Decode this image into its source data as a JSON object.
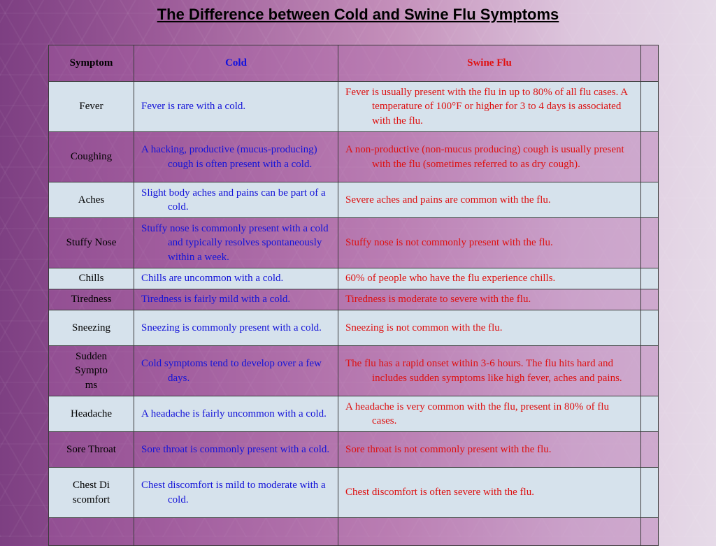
{
  "title": "The Difference between Cold and Swine Flu Symptoms",
  "table": {
    "headers": [
      "Symptom",
      "Cold",
      "Swine Flu",
      ""
    ],
    "rows": [
      {
        "symptom": "Fever",
        "cold": "Fever is rare with a cold.",
        "flu": "Fever is usually present with the flu in up to 80% of all flu cases. A temperature of 100°F or higher for 3 to 4 days is associated with the flu."
      },
      {
        "symptom": "Coughing",
        "cold": "A hacking, productive (mucus-producing) cough is often present with a cold.",
        "flu": "A non-productive (non-mucus producing) cough is usually present with the flu (sometimes referred to as dry cough)."
      },
      {
        "symptom": "Aches",
        "cold": "Slight body aches and pains can be part of a cold.",
        "flu": "Severe aches and pains are common with the flu."
      },
      {
        "symptom": "Stuffy Nose",
        "cold": "Stuffy nose is commonly present with a cold and typically resolves spontaneously within a week.",
        "flu": "Stuffy nose is not commonly present with the flu."
      },
      {
        "symptom": "Chills",
        "cold": "Chills are uncommon with a cold.",
        "flu": "60% of people who have the flu experience chills."
      },
      {
        "symptom": "Tiredness",
        "cold": "Tiredness is fairly mild with a cold.",
        "flu": "Tiredness is moderate to severe with the flu."
      },
      {
        "symptom": "Sneezing",
        "cold": "Sneezing is commonly present with a cold.",
        "flu": "Sneezing is not common with the flu."
      },
      {
        "symptom": "Sudden Symptoms",
        "cold": "Cold symptoms tend to develop over a few days.",
        "flu": "The flu has a rapid onset within 3-6 hours. The flu hits hard and includes sudden symptoms like high fever, aches and pains."
      },
      {
        "symptom": "Headache",
        "cold": "A headache is fairly uncommon with a cold.",
        "flu": "A headache is very common with the flu, present in 80% of flu cases."
      },
      {
        "symptom": "Sore Throat",
        "cold": "Sore throat is commonly present with a cold.",
        "flu": "Sore throat is not commonly present with the flu."
      },
      {
        "symptom": "Chest Discomfort",
        "cold": "Chest discomfort is mild to moderate with a cold.",
        "flu": "Chest discomfort is often severe with the flu."
      },
      {
        "symptom": "",
        "cold": "",
        "flu": ""
      }
    ]
  },
  "colors": {
    "cold_text": "#1414d8",
    "flu_text": "#dd1111",
    "row_light": "#d6e2ec",
    "row_dark": "#b57ab0"
  }
}
